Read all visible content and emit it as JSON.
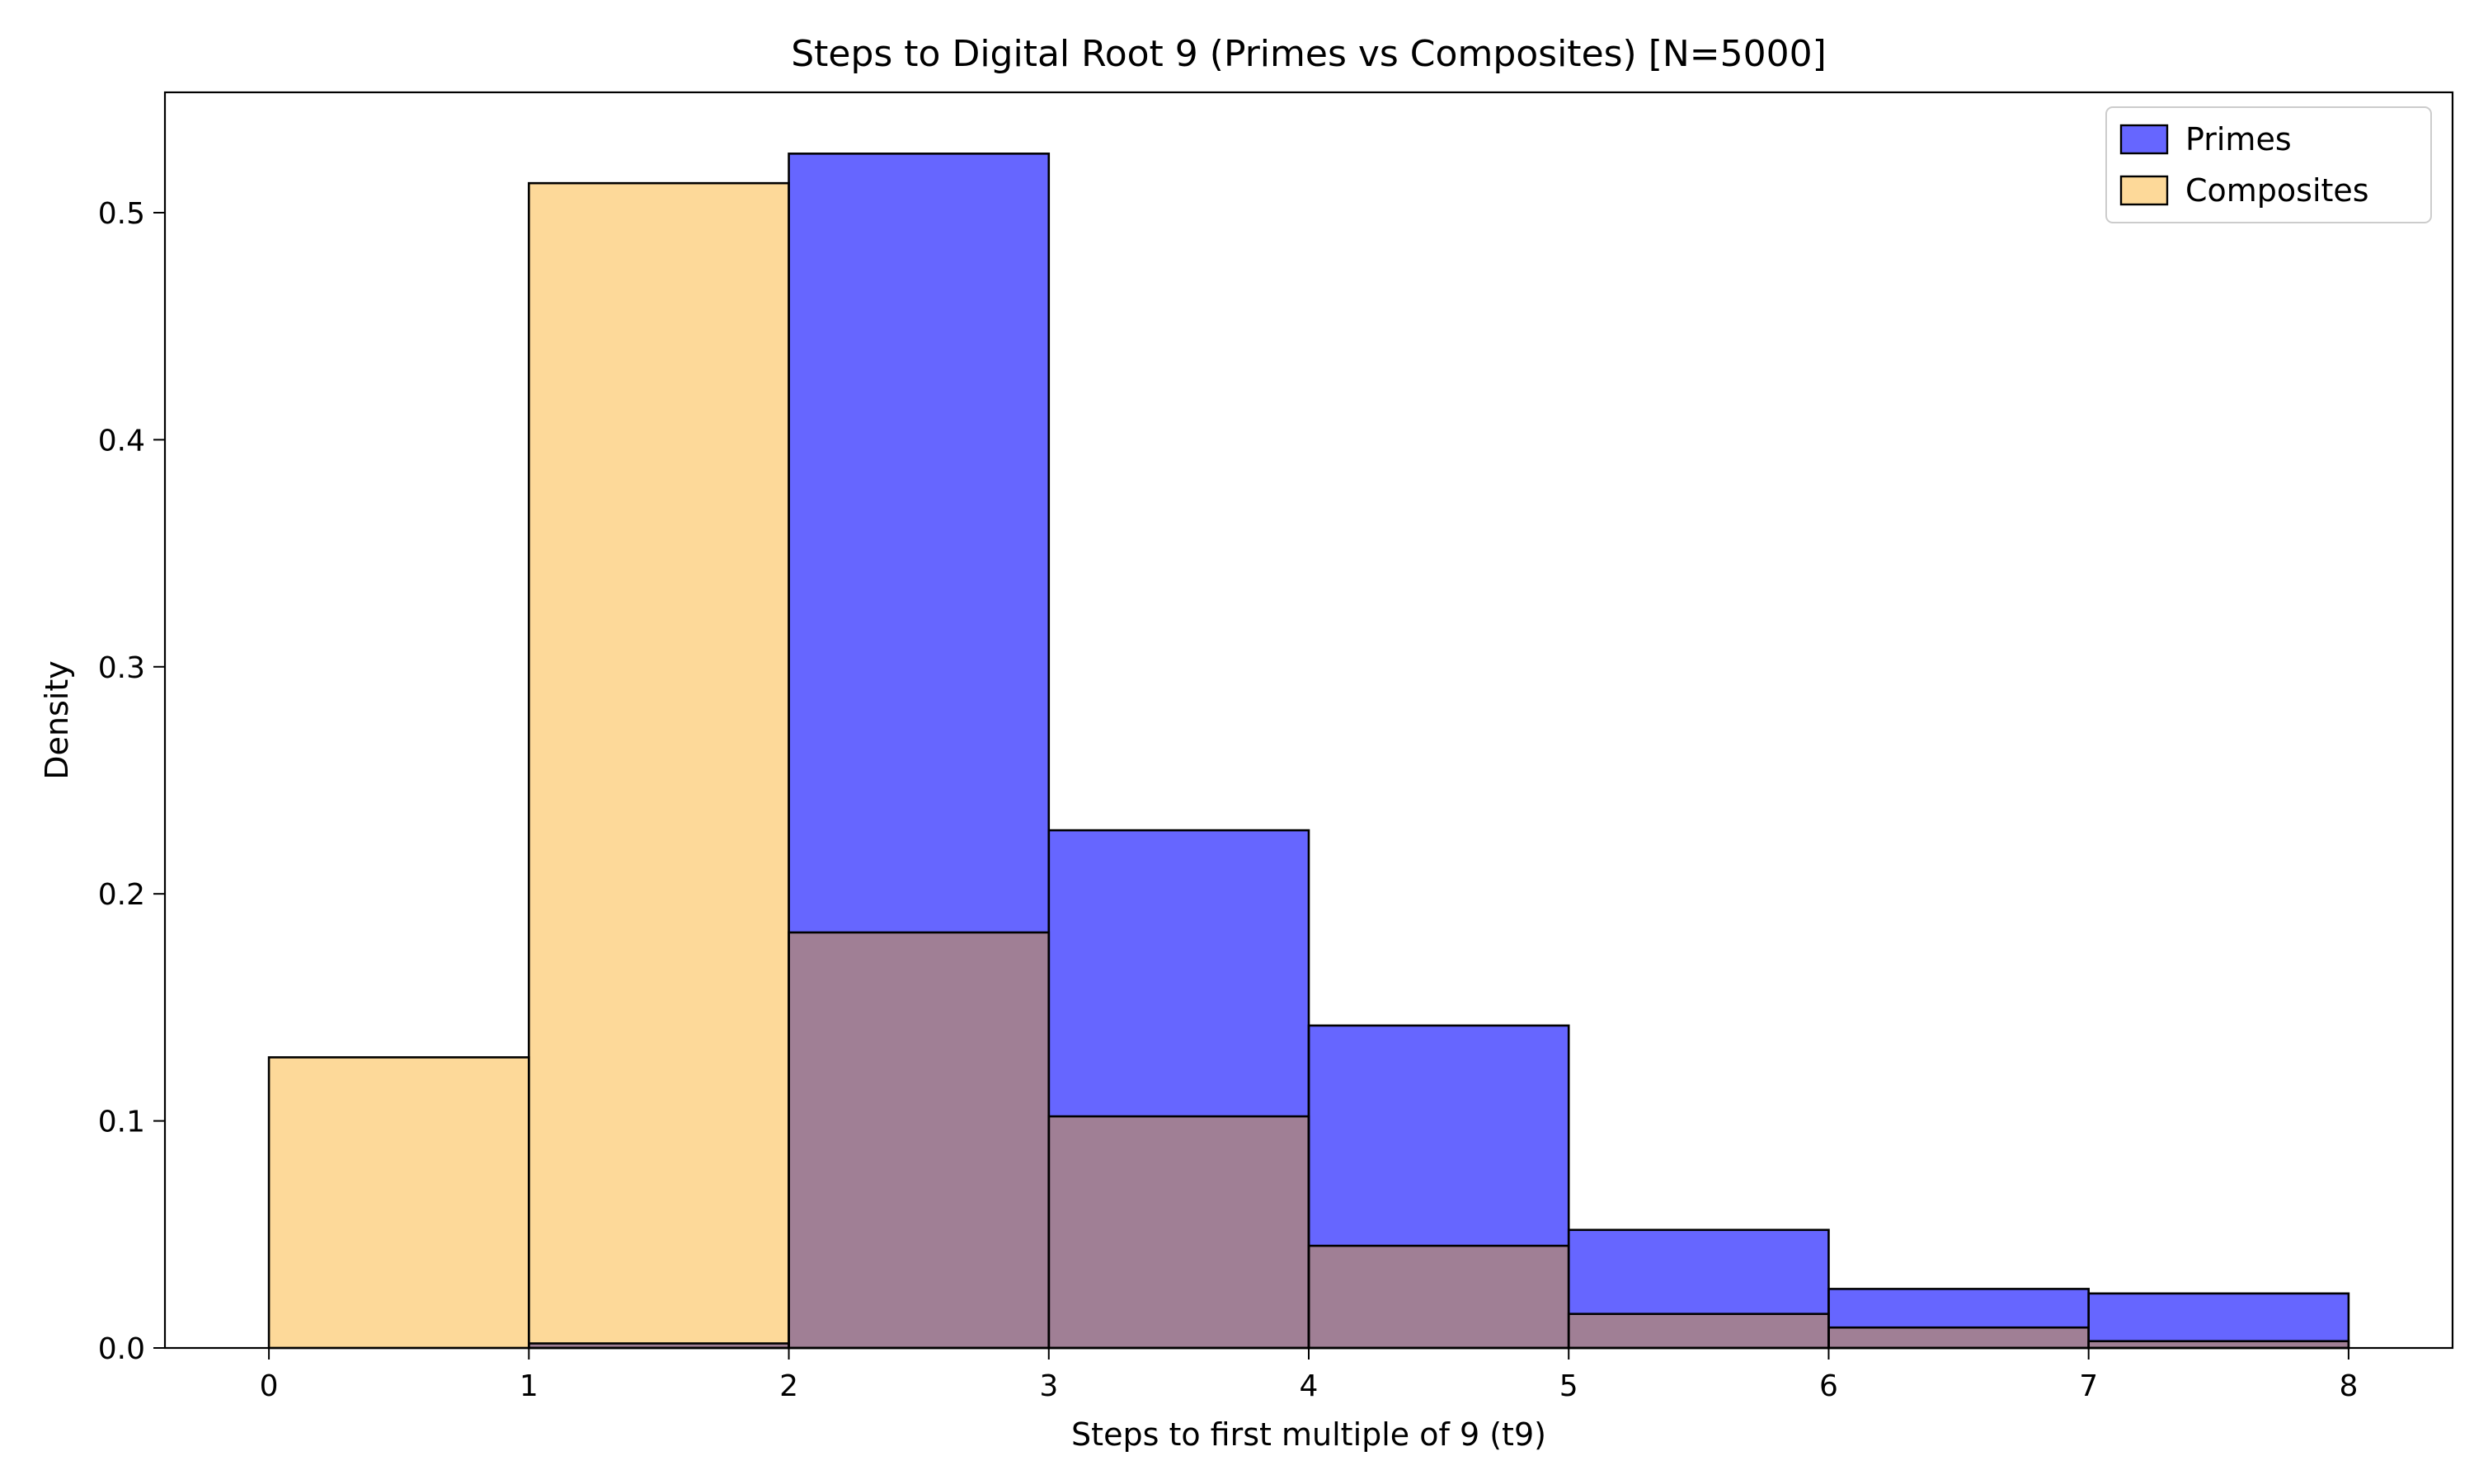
{
  "chart_data": {
    "type": "bar",
    "title": "Steps to Digital Root 9 (Primes vs Composites) [N=5000]",
    "xlabel": "Steps to first multiple of 9 (t9)",
    "ylabel": "Density",
    "bin_edges": [
      0,
      1,
      2,
      3,
      4,
      5,
      6,
      7,
      8
    ],
    "xlim": [
      -0.4,
      8.4
    ],
    "ylim": [
      0,
      0.553
    ],
    "xticks": [
      "0",
      "1",
      "2",
      "3",
      "4",
      "5",
      "6",
      "7",
      "8"
    ],
    "yticks": [
      "0.0",
      "0.1",
      "0.2",
      "0.3",
      "0.4",
      "0.5"
    ],
    "ytick_values": [
      0,
      0.1,
      0.2,
      0.3,
      0.4,
      0.5
    ],
    "grid": false,
    "legend_position": "top-right",
    "series": [
      {
        "name": "Primes",
        "color": "#6666ff",
        "values": [
          0.0,
          0.002,
          0.526,
          0.228,
          0.142,
          0.052,
          0.026,
          0.024
        ]
      },
      {
        "name": "Composites",
        "color": "#fdd999",
        "values": [
          0.128,
          0.513,
          0.183,
          0.102,
          0.045,
          0.015,
          0.009,
          0.003
        ]
      }
    ],
    "overlap_color": "#a07f95"
  }
}
